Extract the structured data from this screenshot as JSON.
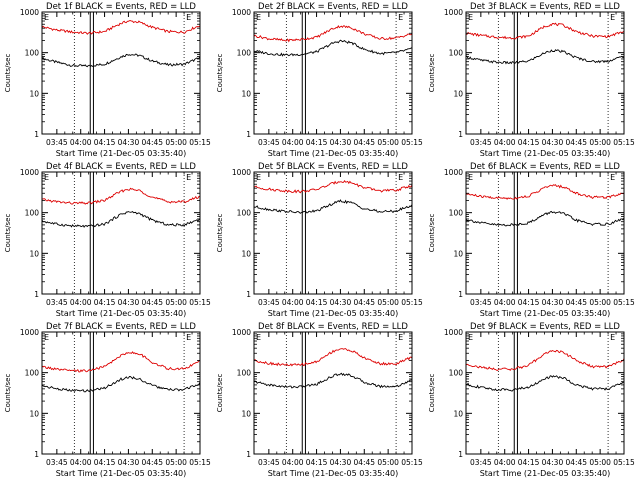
{
  "colors": {
    "events": "#000000",
    "lld": "#dd0000",
    "axes": "#000000",
    "background": "#ffffff"
  },
  "chart_data": [
    {
      "type": "line",
      "title": "Det 1f BLACK = Events, RED = LLD",
      "xlabel": "Start Time (21-Dec-05 03:35:40)",
      "ylabel": "Counts/sec",
      "yscale": "log",
      "ylim": [
        1,
        1000
      ],
      "y_tick_labels": [
        "1",
        "10",
        "100",
        "1000"
      ],
      "xlim": [
        "03:35:40",
        "05:15:00"
      ],
      "x_tick_labels": [
        "03:45",
        "04:00",
        "04:15",
        "04:30",
        "04:45",
        "05:00",
        "05:15"
      ],
      "dotted_vlines": [
        "03:56",
        "05:05"
      ],
      "solid_vlines": [
        "04:06",
        "04:08"
      ],
      "corner_marks": [
        "E",
        "E"
      ],
      "x": [
        "03:36",
        "03:45",
        "03:55",
        "04:05",
        "04:15",
        "04:25",
        "04:30",
        "04:37",
        "04:45",
        "04:55",
        "05:05",
        "05:15"
      ],
      "series": [
        {
          "name": "BLACK = Events",
          "values": [
            72,
            58,
            48,
            47,
            52,
            78,
            92,
            85,
            62,
            50,
            52,
            75
          ]
        },
        {
          "name": "RED = LLD",
          "values": [
            430,
            360,
            320,
            300,
            330,
            520,
            600,
            560,
            420,
            330,
            320,
            470
          ]
        }
      ]
    },
    {
      "type": "line",
      "title": "Det 2f BLACK = Events, RED = LLD",
      "xlabel": "Start Time (21-Dec-05 03:35:40)",
      "ylabel": "Counts/sec",
      "yscale": "log",
      "ylim": [
        1,
        1000
      ],
      "y_tick_labels": [
        "1",
        "10",
        "100",
        "1000"
      ],
      "xlim": [
        "03:35:40",
        "05:15:00"
      ],
      "x_tick_labels": [
        "03:45",
        "04:00",
        "04:15",
        "04:30",
        "04:45",
        "05:00",
        "05:15"
      ],
      "dotted_vlines": [
        "03:56",
        "05:05"
      ],
      "solid_vlines": [
        "04:06",
        "04:08"
      ],
      "corner_marks": [
        "E",
        "E"
      ],
      "x": [
        "03:36",
        "03:45",
        "03:55",
        "04:05",
        "04:15",
        "04:25",
        "04:30",
        "04:37",
        "04:45",
        "04:55",
        "05:05",
        "05:15"
      ],
      "series": [
        {
          "name": "BLACK = Events",
          "values": [
            110,
            95,
            88,
            90,
            105,
            170,
            195,
            175,
            120,
            95,
            100,
            125
          ]
        },
        {
          "name": "RED = LLD",
          "values": [
            260,
            220,
            200,
            210,
            240,
            390,
            450,
            410,
            290,
            220,
            230,
            290
          ]
        }
      ]
    },
    {
      "type": "line",
      "title": "Det 3f BLACK = Events, RED = LLD",
      "xlabel": "Start Time (21-Dec-05 03:35:40)",
      "ylabel": "Counts/sec",
      "yscale": "log",
      "ylim": [
        1,
        1000
      ],
      "y_tick_labels": [
        "1",
        "10",
        "100",
        "1000"
      ],
      "xlim": [
        "03:35:40",
        "05:15:00"
      ],
      "x_tick_labels": [
        "03:45",
        "04:00",
        "04:15",
        "04:30",
        "04:45",
        "05:00",
        "05:15"
      ],
      "dotted_vlines": [
        "03:56",
        "05:05"
      ],
      "solid_vlines": [
        "04:06",
        "04:08"
      ],
      "corner_marks": [
        "E",
        "E"
      ],
      "x": [
        "03:36",
        "03:45",
        "03:55",
        "04:05",
        "04:15",
        "04:25",
        "04:30",
        "04:37",
        "04:45",
        "04:55",
        "05:05",
        "05:15"
      ],
      "series": [
        {
          "name": "BLACK = Events",
          "values": [
            78,
            65,
            58,
            56,
            62,
            98,
            115,
            105,
            75,
            60,
            62,
            82
          ]
        },
        {
          "name": "RED = LLD",
          "values": [
            300,
            265,
            240,
            230,
            255,
            440,
            510,
            470,
            330,
            255,
            250,
            330
          ]
        }
      ]
    },
    {
      "type": "line",
      "title": "Det 4f BLACK = Events, RED = LLD",
      "xlabel": "Start Time (21-Dec-05 03:35:40)",
      "ylabel": "Counts/sec",
      "yscale": "log",
      "ylim": [
        1,
        1000
      ],
      "y_tick_labels": [
        "1",
        "10",
        "100",
        "1000"
      ],
      "xlim": [
        "03:35:40",
        "05:15:00"
      ],
      "x_tick_labels": [
        "03:45",
        "04:00",
        "04:15",
        "04:30",
        "04:45",
        "05:00",
        "05:15"
      ],
      "dotted_vlines": [
        "03:56",
        "05:05"
      ],
      "solid_vlines": [
        "04:06",
        "04:08"
      ],
      "corner_marks": [
        "E",
        "E"
      ],
      "x": [
        "03:36",
        "03:45",
        "03:55",
        "04:05",
        "04:15",
        "04:25",
        "04:30",
        "04:37",
        "04:45",
        "04:55",
        "05:05",
        "05:15"
      ],
      "series": [
        {
          "name": "BLACK = Events",
          "values": [
            62,
            52,
            47,
            46,
            52,
            90,
            105,
            95,
            65,
            50,
            50,
            70
          ]
        },
        {
          "name": "RED = LLD",
          "values": [
            210,
            185,
            170,
            172,
            200,
            330,
            380,
            350,
            240,
            185,
            185,
            250
          ]
        }
      ]
    },
    {
      "type": "line",
      "title": "Det 5f BLACK = Events, RED = LLD",
      "xlabel": "Start Time (21-Dec-05 03:35:40)",
      "ylabel": "Counts/sec",
      "yscale": "log",
      "ylim": [
        1,
        1000
      ],
      "y_tick_labels": [
        "1",
        "10",
        "100",
        "1000"
      ],
      "xlim": [
        "03:35:40",
        "05:15:00"
      ],
      "x_tick_labels": [
        "03:45",
        "04:00",
        "04:15",
        "04:30",
        "04:45",
        "05:00",
        "05:15"
      ],
      "dotted_vlines": [
        "03:56",
        "05:05"
      ],
      "solid_vlines": [
        "04:06",
        "04:08"
      ],
      "corner_marks": [
        "E",
        "E"
      ],
      "x": [
        "03:36",
        "03:45",
        "03:55",
        "04:05",
        "04:15",
        "04:25",
        "04:30",
        "04:37",
        "04:45",
        "04:55",
        "05:05",
        "05:15"
      ],
      "series": [
        {
          "name": "BLACK = Events",
          "values": [
            140,
            120,
            108,
            100,
            110,
            165,
            195,
            175,
            125,
            105,
            110,
            150
          ]
        },
        {
          "name": "RED = LLD",
          "values": [
            430,
            375,
            345,
            330,
            370,
            520,
            600,
            550,
            410,
            345,
            355,
            470
          ]
        }
      ]
    },
    {
      "type": "line",
      "title": "Det 6f BLACK = Events, RED = LLD",
      "xlabel": "Start Time (21-Dec-05 03:35:40)",
      "ylabel": "Counts/sec",
      "yscale": "log",
      "ylim": [
        1,
        1000
      ],
      "y_tick_labels": [
        "1",
        "10",
        "100",
        "1000"
      ],
      "xlim": [
        "03:35:40",
        "05:15:00"
      ],
      "x_tick_labels": [
        "03:45",
        "04:00",
        "04:15",
        "04:30",
        "04:45",
        "05:00",
        "05:15"
      ],
      "dotted_vlines": [
        "03:56",
        "05:05"
      ],
      "solid_vlines": [
        "04:06",
        "04:08"
      ],
      "corner_marks": [
        "E",
        "E"
      ],
      "x": [
        "03:36",
        "03:45",
        "03:55",
        "04:05",
        "04:15",
        "04:25",
        "04:30",
        "04:37",
        "04:45",
        "04:55",
        "05:05",
        "05:15"
      ],
      "series": [
        {
          "name": "BLACK = Events",
          "values": [
            68,
            56,
            50,
            50,
            56,
            90,
            105,
            95,
            65,
            52,
            52,
            72
          ]
        },
        {
          "name": "RED = LLD",
          "values": [
            290,
            250,
            230,
            225,
            255,
            410,
            470,
            430,
            300,
            240,
            240,
            310
          ]
        }
      ]
    },
    {
      "type": "line",
      "title": "Det 7f BLACK = Events, RED = LLD",
      "xlabel": "Start Time (21-Dec-05 03:35:40)",
      "ylabel": "Counts/sec",
      "yscale": "log",
      "ylim": [
        1,
        1000
      ],
      "y_tick_labels": [
        "1",
        "10",
        "100",
        "1000"
      ],
      "xlim": [
        "03:35:40",
        "05:15:00"
      ],
      "x_tick_labels": [
        "03:45",
        "04:00",
        "04:15",
        "04:30",
        "04:45",
        "05:00",
        "05:15"
      ],
      "dotted_vlines": [
        "03:56",
        "05:05"
      ],
      "solid_vlines": [
        "04:06",
        "04:08"
      ],
      "corner_marks": [
        "E",
        "E"
      ],
      "x": [
        "03:36",
        "03:45",
        "03:55",
        "04:05",
        "04:15",
        "04:25",
        "04:30",
        "04:37",
        "04:45",
        "04:55",
        "05:05",
        "05:15"
      ],
      "series": [
        {
          "name": "BLACK = Events",
          "values": [
            48,
            40,
            36,
            36,
            42,
            68,
            78,
            70,
            48,
            38,
            38,
            55
          ]
        },
        {
          "name": "RED = LLD",
          "values": [
            140,
            120,
            110,
            112,
            140,
            260,
            320,
            290,
            180,
            125,
            125,
            190
          ]
        }
      ]
    },
    {
      "type": "line",
      "title": "Det 8f BLACK = Events, RED = LLD",
      "xlabel": "Start Time (21-Dec-05 03:35:40)",
      "ylabel": "Counts/sec",
      "yscale": "log",
      "ylim": [
        1,
        1000
      ],
      "y_tick_labels": [
        "1",
        "10",
        "100",
        "1000"
      ],
      "xlim": [
        "03:35:40",
        "05:15:00"
      ],
      "x_tick_labels": [
        "03:45",
        "04:00",
        "04:15",
        "04:30",
        "04:45",
        "05:00",
        "05:15"
      ],
      "dotted_vlines": [
        "03:56",
        "05:05"
      ],
      "solid_vlines": [
        "04:06",
        "04:08"
      ],
      "corner_marks": [
        "E",
        "E"
      ],
      "x": [
        "03:36",
        "03:45",
        "03:55",
        "04:05",
        "04:15",
        "04:25",
        "04:30",
        "04:37",
        "04:45",
        "04:55",
        "05:05",
        "05:15"
      ],
      "series": [
        {
          "name": "BLACK = Events",
          "values": [
            60,
            50,
            45,
            45,
            52,
            82,
            95,
            85,
            58,
            46,
            46,
            65
          ]
        },
        {
          "name": "RED = LLD",
          "values": [
            200,
            170,
            155,
            155,
            185,
            330,
            390,
            350,
            230,
            165,
            165,
            240
          ]
        }
      ]
    },
    {
      "type": "line",
      "title": "Det 9f BLACK = Events, RED = LLD",
      "xlabel": "Start Time (21-Dec-05 03:35:40)",
      "ylabel": "Counts/sec",
      "yscale": "log",
      "ylim": [
        1,
        1000
      ],
      "y_tick_labels": [
        "1",
        "10",
        "100",
        "1000"
      ],
      "xlim": [
        "03:35:40",
        "05:15:00"
      ],
      "x_tick_labels": [
        "03:45",
        "04:00",
        "04:15",
        "04:30",
        "04:45",
        "05:00",
        "05:15"
      ],
      "dotted_vlines": [
        "03:56",
        "05:05"
      ],
      "solid_vlines": [
        "04:06",
        "04:08"
      ],
      "corner_marks": [
        "E",
        "E"
      ],
      "x": [
        "03:36",
        "03:45",
        "03:55",
        "04:05",
        "04:15",
        "04:25",
        "04:30",
        "04:37",
        "04:45",
        "04:55",
        "05:05",
        "05:15"
      ],
      "series": [
        {
          "name": "BLACK = Events",
          "values": [
            52,
            43,
            38,
            38,
            44,
            70,
            82,
            74,
            50,
            40,
            40,
            58
          ]
        },
        {
          "name": "RED = LLD",
          "values": [
            160,
            135,
            122,
            122,
            150,
            290,
            350,
            315,
            200,
            140,
            140,
            210
          ]
        }
      ]
    }
  ]
}
